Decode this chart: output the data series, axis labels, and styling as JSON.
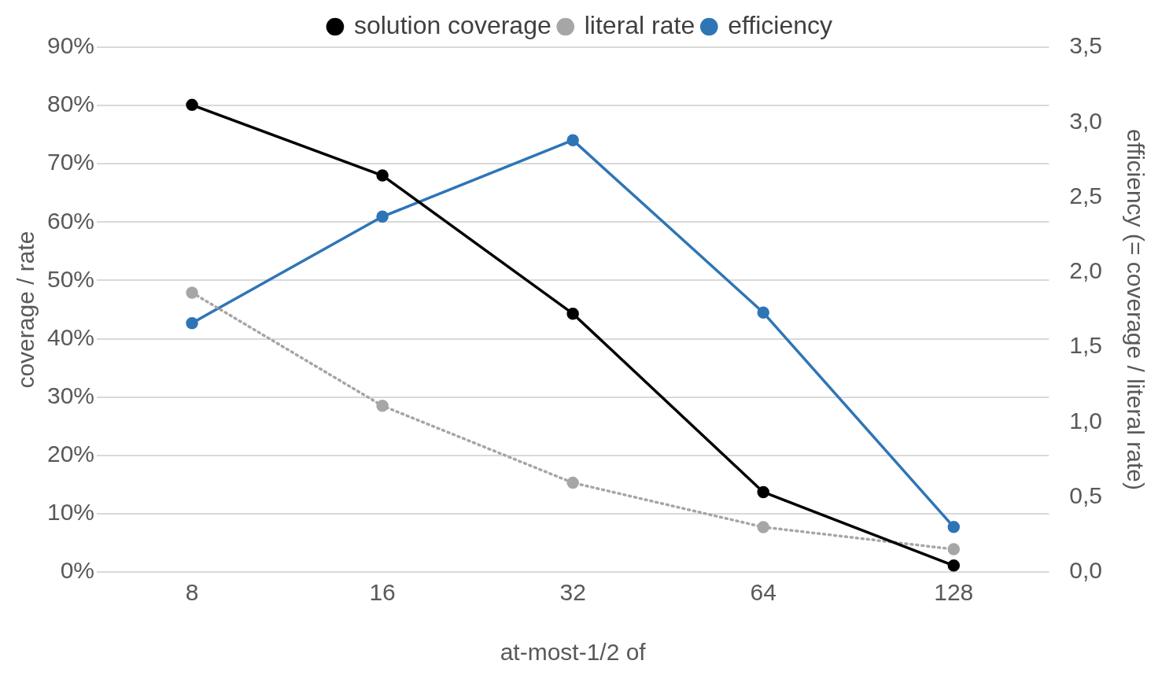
{
  "chart_data": {
    "type": "line",
    "xlabel": "at-most-1/2 of",
    "ylabel": "coverage / rate",
    "y2label": "efficiency (= coverage / literal rate)",
    "categories": [
      "8",
      "16",
      "32",
      "64",
      "128"
    ],
    "series": [
      {
        "name": "solution coverage",
        "color": "#000000",
        "values": [
          80.1,
          68,
          44.3,
          13.7,
          1.1
        ],
        "line_style": "solid"
      },
      {
        "name": "literal rate",
        "color": "#a6a6a6",
        "values": [
          47.9,
          28.5,
          15.3,
          7.7,
          3.9
        ],
        "line_style": "dotted"
      },
      {
        "name": "efficiency",
        "color": "#2e75b6",
        "values": [
          1.66,
          2.37,
          2.88,
          1.73,
          0.3
        ],
        "axis": "y2",
        "line_style": "solid"
      }
    ],
    "ylim": [
      0,
      90
    ],
    "yticks": [
      {
        "value": 0,
        "label": "0%"
      },
      {
        "value": 10,
        "label": "10%"
      },
      {
        "value": 20,
        "label": "20%"
      },
      {
        "value": 30,
        "label": "30%"
      },
      {
        "value": 40,
        "label": "40%"
      },
      {
        "value": 50,
        "label": "50%"
      },
      {
        "value": 60,
        "label": "60%"
      },
      {
        "value": 70,
        "label": "70%"
      },
      {
        "value": 80,
        "label": "80%"
      },
      {
        "value": 90,
        "label": "90%"
      }
    ],
    "y2lim": [
      0,
      3.5
    ],
    "y2ticks": [
      {
        "value": 0,
        "label": "0,0"
      },
      {
        "value": 0.5,
        "label": "0,5"
      },
      {
        "value": 1,
        "label": "1,0"
      },
      {
        "value": 1.5,
        "label": "1,5"
      },
      {
        "value": 2,
        "label": "2,0"
      },
      {
        "value": 2.5,
        "label": "2,5"
      },
      {
        "value": 3,
        "label": "3,0"
      },
      {
        "value": 3.5,
        "label": "3,5"
      }
    ],
    "grid": "y",
    "legend": "top",
    "marker": "circle"
  }
}
